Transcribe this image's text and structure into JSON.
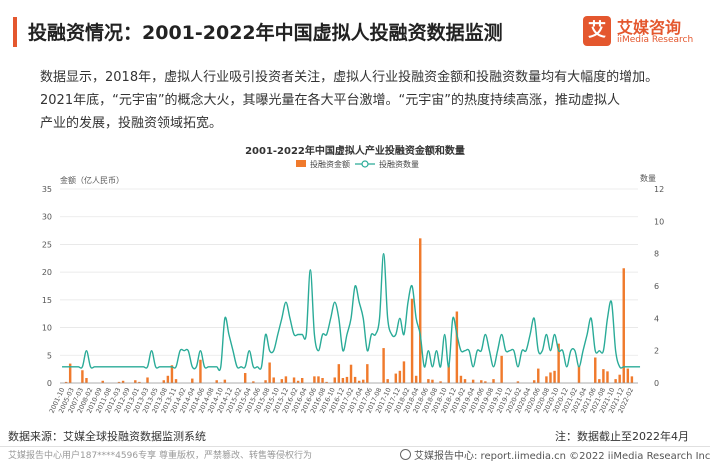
{
  "header": {
    "title": "投融资情况：2001-2022年中国虚拟人投融资数据监测",
    "logo_cn": "艾媒咨询",
    "logo_en": "iiMedia Research",
    "logo_mark": "艾"
  },
  "paragraph": [
    "数据显示，2018年，虚拟人行业吸引投资者关注，虚拟人行业投融资金额和投融资数量均有大幅度的增加。",
    "2021年底，“元宇宙”的概念大火，其曝光量在各大平台激增。“元宇宙”的热度持续高涨，推动虚拟人",
    "产业的发展，投融资领域拓宽。"
  ],
  "footer": {
    "source": "数据来源：艾媒全球投融资数据监测系统",
    "note": "注：数据截止至2022年4月",
    "left": "艾媒报告中心用户187****4596专享 尊重版权，严禁篡改、转售等侵权行为",
    "right": "艾媒报告中心: report.iimedia.cn  ©2022 iiMedia Research Inc"
  },
  "colors": {
    "bar": "#f07a2c",
    "line": "#2aab98",
    "accent": "#e4572e"
  },
  "chart_data": {
    "type": "bar",
    "title": "2001-2022年中国虚拟人产业投融资金额和数量",
    "ylabel": "金额（亿人民币）",
    "y2label": "数量",
    "ylim": [
      0,
      35
    ],
    "y2lim": [
      0,
      12
    ],
    "yticks": [
      0,
      5,
      10,
      15,
      20,
      25,
      30,
      35
    ],
    "y2ticks": [
      0,
      2,
      4,
      6,
      8,
      10,
      12
    ],
    "legend": "top-center",
    "series": [
      {
        "name": "投融资金额",
        "type": "bar",
        "axis": "left",
        "values": [
          0,
          0.2,
          3.5,
          0,
          0,
          2.3,
          0.9,
          0,
          0,
          0,
          0.4,
          0,
          0,
          0,
          0.2,
          0.4,
          0,
          0,
          0.5,
          0.2,
          0,
          1,
          0,
          0,
          0,
          0.5,
          1.3,
          3.2,
          0.7,
          0,
          0,
          0,
          0.8,
          0,
          4.2,
          0,
          0,
          0,
          0.5,
          0.1,
          0.6,
          0,
          0,
          0,
          0,
          1.8,
          0,
          0.3,
          0,
          0,
          0.5,
          3.7,
          1,
          0,
          0.7,
          1.2,
          0,
          1,
          0.4,
          0.9,
          0,
          0,
          1.2,
          1.2,
          0.9,
          0.2,
          0,
          1,
          3.4,
          0.9,
          1.1,
          3.3,
          1.1,
          0.4,
          0.6,
          3.4,
          0,
          0,
          0,
          6.3,
          0.7,
          0,
          1.7,
          2.2,
          3.9,
          0,
          15.2,
          1.3,
          26.1,
          0,
          0.7,
          0.6,
          0,
          0.3,
          0,
          3.2,
          0,
          12.9,
          1.3,
          0.7,
          0,
          0.6,
          0,
          0.5,
          0.3,
          0,
          0.7,
          0,
          4.9,
          0,
          0,
          0,
          0.3,
          0,
          0,
          0,
          0.5,
          2.6,
          0,
          1.2,
          1.9,
          2.2,
          7.1,
          0,
          0,
          0,
          0,
          3.1,
          0,
          0,
          0,
          4.6,
          0.7,
          2.5,
          2.1,
          0,
          0.7,
          1.5,
          20.7,
          2.6,
          1.2,
          0
        ]
      },
      {
        "name": "投融资数量",
        "type": "line",
        "axis": "right",
        "values": [
          1,
          1,
          1,
          1,
          1,
          1,
          2,
          1,
          1,
          1,
          1,
          1,
          1,
          1,
          1,
          1,
          1,
          1,
          1,
          1,
          1,
          1,
          2,
          1,
          1,
          1,
          1,
          1,
          1,
          2,
          2,
          2,
          1,
          1,
          2,
          1,
          1,
          1,
          1,
          1,
          4,
          3,
          2,
          1,
          1,
          1,
          2,
          1,
          1,
          1,
          3,
          2,
          2,
          3,
          4,
          5,
          4,
          3,
          3,
          3,
          3,
          7,
          3,
          2,
          3,
          3,
          4,
          5,
          4,
          2,
          3,
          4,
          6,
          5,
          4,
          2,
          3,
          3,
          4,
          8,
          4,
          3,
          3,
          4,
          3,
          5,
          6,
          4,
          3,
          1,
          2,
          1,
          2,
          1,
          3,
          1,
          4,
          3,
          2,
          2,
          2,
          1,
          2,
          2,
          3,
          2,
          1,
          2,
          3,
          2,
          2,
          2,
          1,
          2,
          2,
          3,
          4,
          2,
          2,
          3,
          2,
          3,
          2,
          2,
          1,
          2,
          2,
          1,
          2,
          3,
          4,
          2,
          2,
          2,
          4,
          5,
          2,
          1,
          1,
          1,
          1,
          1,
          1
        ]
      }
    ],
    "x_tick_labels": [
      "2001-10",
      "2005-03",
      "2007-03",
      "2008-02",
      "2010-09",
      "2011-08",
      "2012-03",
      "2012-09",
      "2013-01",
      "2013-03",
      "2013-05",
      "2013-08",
      "2013-11",
      "2014-02",
      "2014-04",
      "2014-06",
      "2014-08",
      "2014-10",
      "2014-12",
      "2015-02",
      "2015-04",
      "2015-06",
      "2015-08",
      "2015-10",
      "2015-12",
      "2016-02",
      "2016-04",
      "2016-06",
      "2016-08",
      "2016-10",
      "2016-12",
      "2017-02",
      "2017-04",
      "2017-06",
      "2017-08",
      "2017-10",
      "2017-12",
      "2018-02",
      "2018-04",
      "2018-06",
      "2018-08",
      "2018-10",
      "2018-12",
      "2019-02",
      "2019-04",
      "2019-06",
      "2019-08",
      "2019-10",
      "2019-12",
      "2020-02",
      "2020-04",
      "2020-06",
      "2020-08",
      "2020-10",
      "2020-12",
      "2021-02",
      "2021-04",
      "2021-06",
      "2021-08",
      "2021-10",
      "2021-12",
      "2022-02"
    ]
  }
}
